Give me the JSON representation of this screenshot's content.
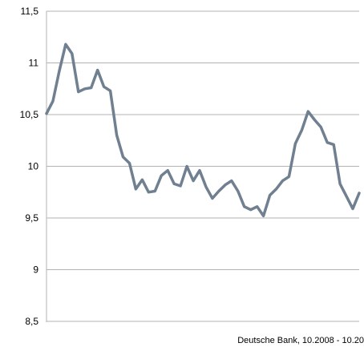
{
  "chart_data": {
    "type": "line",
    "caption": "Deutsche Bank, 10.2008 - 10.20",
    "ylim": [
      8.5,
      11.5
    ],
    "y_ticks": [
      8.5,
      9,
      9.5,
      10,
      10.5,
      11,
      11.5
    ],
    "y_tick_labels": [
      "8,5",
      "9",
      "9,5",
      "10",
      "10,5",
      "11",
      "11,5"
    ],
    "grid": true,
    "line_color": "#708090",
    "grid_color": "#b3b3b3",
    "series": [
      {
        "values": [
          10.51,
          10.63,
          10.92,
          11.18,
          11.09,
          10.72,
          10.75,
          10.76,
          10.93,
          10.77,
          10.73,
          10.3,
          10.09,
          10.03,
          9.78,
          9.87,
          9.75,
          9.76,
          9.91,
          9.96,
          9.83,
          9.81,
          10.0,
          9.86,
          9.96,
          9.8,
          9.69,
          9.76,
          9.82,
          9.86,
          9.76,
          9.61,
          9.58,
          9.61,
          9.52,
          9.72,
          9.78,
          9.86,
          9.9,
          10.22,
          10.35,
          10.53,
          10.45,
          10.38,
          10.23,
          10.21,
          9.83,
          9.71,
          9.59,
          9.74
        ]
      }
    ]
  }
}
